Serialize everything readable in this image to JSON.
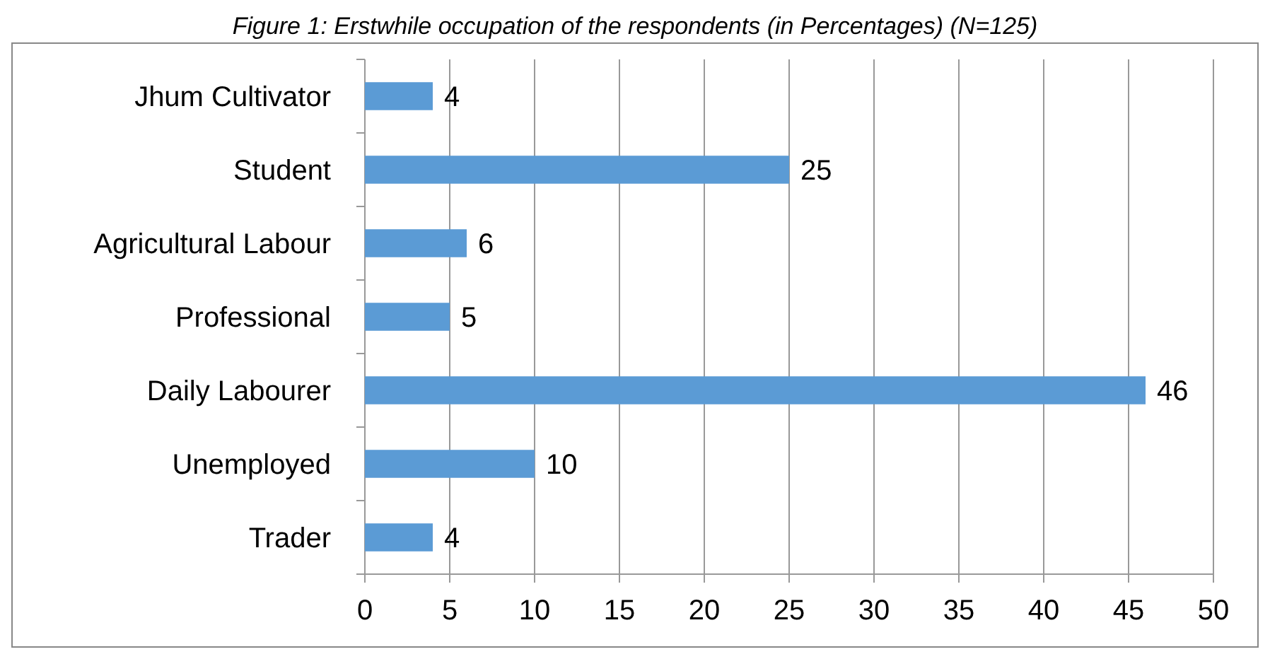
{
  "chart_data": {
    "type": "bar",
    "orientation": "horizontal",
    "title": "Figure 1: Erstwhile occupation of the respondents (in Percentages) (N=125)",
    "categories": [
      "Jhum Cultivator",
      "Student",
      "Agricultural Labour",
      "Professional",
      "Daily Labourer",
      "Unemployed",
      "Trader"
    ],
    "values": [
      4,
      25,
      6,
      5,
      46,
      10,
      4
    ],
    "color": "#5b9bd5",
    "xlim": [
      0,
      50
    ],
    "xticks": [
      0,
      5,
      10,
      15,
      20,
      25,
      30,
      35,
      40,
      45,
      50
    ],
    "grid": "x",
    "data_labels": true
  }
}
